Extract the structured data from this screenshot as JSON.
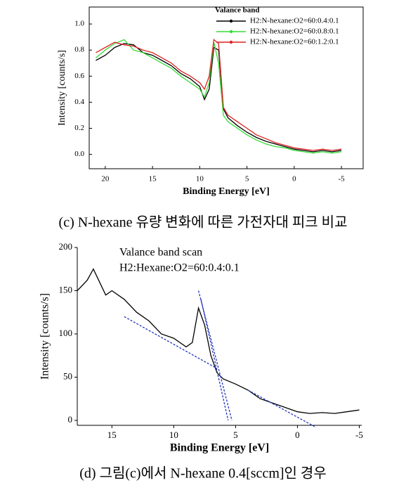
{
  "chart_data": [
    {
      "type": "line",
      "xlabel": "Binding Energy [eV]",
      "ylabel": "Intensity [counts/s]",
      "legend_title": "Valance band",
      "frame": true,
      "caption": "(c) N-hexane 유량 변화에 따른 가전자대 피크 비교",
      "xlim": [
        21.7,
        -7.3
      ],
      "ylim": [
        -0.11,
        1.13
      ],
      "xticks": [
        20,
        15,
        10,
        5,
        0,
        -5
      ],
      "yticks": [
        {
          "value": 0,
          "label": "0.0"
        },
        {
          "value": 0.2,
          "label": "0.2"
        },
        {
          "value": 0.4,
          "label": "0.4"
        },
        {
          "value": 0.6,
          "label": "0.6"
        },
        {
          "value": 0.8,
          "label": "0.8"
        },
        {
          "value": 1,
          "label": "1.0"
        }
      ],
      "x": [
        21,
        20,
        19,
        18,
        17,
        16,
        15,
        14,
        13,
        12,
        11,
        10,
        9.5,
        9,
        8.5,
        8,
        7.5,
        7,
        6,
        5,
        4,
        3,
        2,
        1,
        0,
        -1,
        -2,
        -3,
        -4,
        -5
      ],
      "series": [
        {
          "name": "H2:N-hexane:O2=60:0.4:0.1",
          "color": "#000000",
          "values": [
            0.72,
            0.76,
            0.82,
            0.85,
            0.84,
            0.78,
            0.76,
            0.72,
            0.68,
            0.62,
            0.58,
            0.52,
            0.42,
            0.5,
            0.82,
            0.8,
            0.35,
            0.28,
            0.22,
            0.17,
            0.13,
            0.1,
            0.08,
            0.06,
            0.04,
            0.03,
            0.02,
            0.03,
            0.02,
            0.03
          ]
        },
        {
          "name": "H2:N-hexane:O2=60:0.8:0.1",
          "color": "#33dd33",
          "values": [
            0.74,
            0.8,
            0.85,
            0.88,
            0.8,
            0.78,
            0.74,
            0.7,
            0.66,
            0.6,
            0.55,
            0.5,
            0.44,
            0.55,
            0.86,
            0.7,
            0.3,
            0.25,
            0.2,
            0.15,
            0.11,
            0.08,
            0.06,
            0.05,
            0.03,
            0.02,
            0.01,
            0.02,
            0.01,
            0.02
          ]
        },
        {
          "name": "H2:N-hexane:O2=60:1.2:0.1",
          "color": "#dd2222",
          "values": [
            0.78,
            0.82,
            0.86,
            0.84,
            0.83,
            0.8,
            0.78,
            0.74,
            0.7,
            0.64,
            0.6,
            0.55,
            0.5,
            0.6,
            0.88,
            0.85,
            0.36,
            0.3,
            0.25,
            0.2,
            0.15,
            0.12,
            0.09,
            0.07,
            0.05,
            0.04,
            0.03,
            0.04,
            0.03,
            0.04
          ]
        }
      ]
    },
    {
      "type": "line",
      "xlabel": "Binding Energy [eV]",
      "ylabel": "Intensity [counts/s]",
      "annotations": [
        "Valance band scan",
        "H2:Hexane:O2=60:0.4:0.1"
      ],
      "frame": false,
      "caption": "(d) 그림(c)에서 N-hexane 0.4[sccm]인 경우",
      "xlim": [
        17.8,
        -5.2
      ],
      "ylim": [
        -5.7,
        200
      ],
      "xticks": [
        15,
        10,
        5,
        0,
        -5
      ],
      "yticks": [
        0,
        50,
        100,
        150,
        200
      ],
      "x": [
        17.8,
        17,
        16.5,
        16,
        15.5,
        15,
        14,
        13,
        12,
        11,
        10,
        9,
        8.5,
        8,
        7.5,
        7,
        6.5,
        6,
        5,
        4,
        3,
        2,
        1,
        0,
        -1,
        -2,
        -3,
        -4,
        -5
      ],
      "series": [
        {
          "color": "#000000",
          "values": [
            150,
            162,
            175,
            160,
            145,
            150,
            140,
            125,
            115,
            100,
            95,
            85,
            90,
            130,
            110,
            75,
            55,
            48,
            42,
            35,
            25,
            20,
            15,
            10,
            8,
            9,
            8,
            10,
            12
          ]
        }
      ],
      "fit_lines": [
        {
          "color": "#2233bb",
          "x": [
            14,
            6.5
          ],
          "y": [
            120,
            60
          ]
        },
        {
          "color": "#2233bb",
          "x": [
            4,
            -1.5
          ],
          "y": [
            35,
            -8
          ]
        },
        {
          "color": "#2233bb",
          "x": [
            8,
            5.3
          ],
          "y": [
            150,
            0
          ]
        },
        {
          "color": "#2233bb",
          "x": [
            7.8,
            5.6
          ],
          "y": [
            140,
            0
          ]
        }
      ]
    }
  ]
}
